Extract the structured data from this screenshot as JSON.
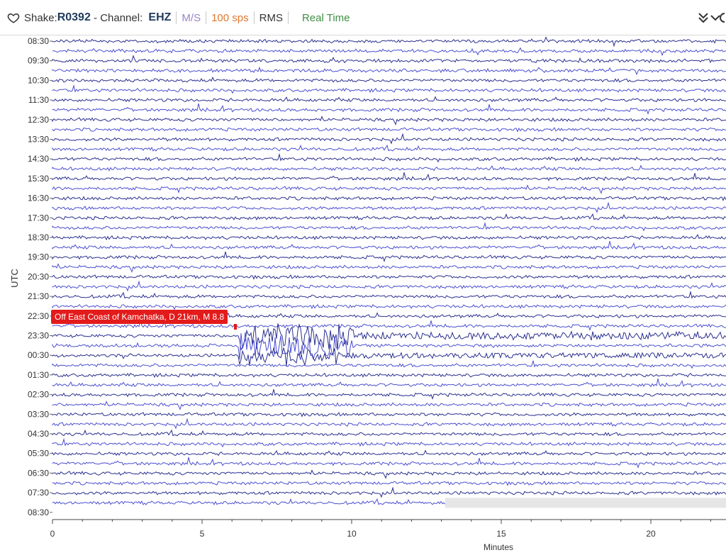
{
  "header": {
    "station_prefix": "Shake: ",
    "station": "R0392",
    "channel_prefix": " - Channel: ",
    "channel": "EHZ",
    "units": "M/S",
    "sps": "100 sps",
    "rms": "RMS",
    "mode": "Real Time",
    "favorite_icon": "heart-outline-icon",
    "collapse_icon": "double-chevron-down-icon",
    "expand_icon": "chevron-down-icon"
  },
  "plot": {
    "y_axis_label": "UTC",
    "x_axis_label": "Minutes",
    "row_labels": [
      "08:30",
      "09:30",
      "10:30",
      "11:30",
      "12:30",
      "13:30",
      "14:30",
      "15:30",
      "16:30",
      "17:30",
      "18:30",
      "19:30",
      "20:30",
      "21:30",
      "22:30",
      "23:30",
      "00:30",
      "01:30",
      "02:30",
      "03:30",
      "04:30",
      "05:30",
      "06:30",
      "07:30",
      "08:30"
    ],
    "x_ticks": [
      "0",
      "5",
      "10",
      "15",
      "20"
    ],
    "trace_colors": [
      "#2a2f8f",
      "#4b4fd0"
    ],
    "event_label": "Off East Coast of Kamchatka, D 21km, M 8.8",
    "event_color": "#e31b1b"
  }
}
